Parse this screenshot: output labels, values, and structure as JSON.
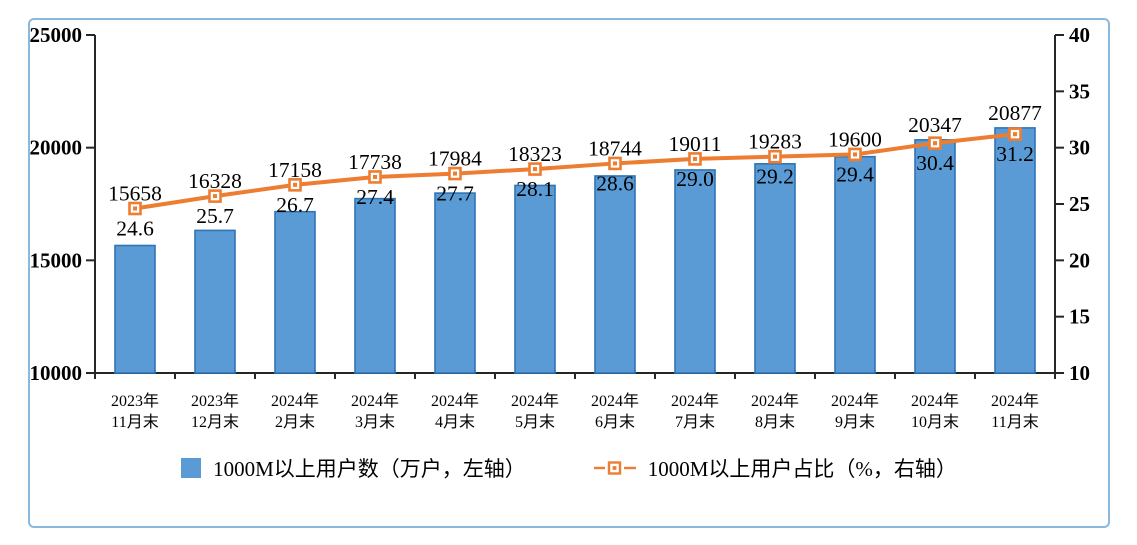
{
  "chart_data": {
    "type": "bar+line combo",
    "title": "",
    "categories": [
      {
        "top": "2023年",
        "bottom": "11月末"
      },
      {
        "top": "2023年",
        "bottom": "12月末"
      },
      {
        "top": "2024年",
        "bottom": "2月末"
      },
      {
        "top": "2024年",
        "bottom": "3月末"
      },
      {
        "top": "2024年",
        "bottom": "4月末"
      },
      {
        "top": "2024年",
        "bottom": "5月末"
      },
      {
        "top": "2024年",
        "bottom": "6月末"
      },
      {
        "top": "2024年",
        "bottom": "7月末"
      },
      {
        "top": "2024年",
        "bottom": "8月末"
      },
      {
        "top": "2024年",
        "bottom": "9月末"
      },
      {
        "top": "2024年",
        "bottom": "10月末"
      },
      {
        "top": "2024年",
        "bottom": "11月末"
      }
    ],
    "series": [
      {
        "name": "1000M以上用户数（万户，左轴）",
        "type": "bar",
        "axis": "left",
        "color": "#5B9BD5",
        "border_color": "#2E75B6",
        "values": [
          15658,
          16328,
          17158,
          17738,
          17984,
          18323,
          18744,
          19011,
          19283,
          19600,
          20347,
          20877
        ]
      },
      {
        "name": "1000M以上用户占比（%，右轴）",
        "type": "line",
        "axis": "right",
        "color": "#ED7D31",
        "marker": "hollow-square-with-dot",
        "values": [
          24.6,
          25.7,
          26.7,
          27.4,
          27.7,
          28.1,
          28.6,
          29.0,
          29.2,
          29.4,
          30.4,
          31.2
        ],
        "value_labels": [
          "24.6",
          "25.7",
          "26.7",
          "27.4",
          "27.7",
          "28.1",
          "28.6",
          "29.0",
          "29.2",
          "29.4",
          "30.4",
          "31.2"
        ]
      }
    ],
    "left_axis": {
      "min": 10000,
      "max": 25000,
      "tick_step": 5000,
      "tick_labels": [
        "25000",
        "20000",
        "15000",
        "10000"
      ]
    },
    "right_axis": {
      "min": 10,
      "max": 40,
      "tick_step": 5,
      "tick_labels": [
        "40",
        "35",
        "30",
        "25",
        "20",
        "15",
        "10"
      ]
    },
    "grid": false,
    "legend_position": "bottom",
    "axis_color": "#262626",
    "xlabel_color": "#3a3a3a",
    "frame_border_color": "#8ab9dd"
  }
}
